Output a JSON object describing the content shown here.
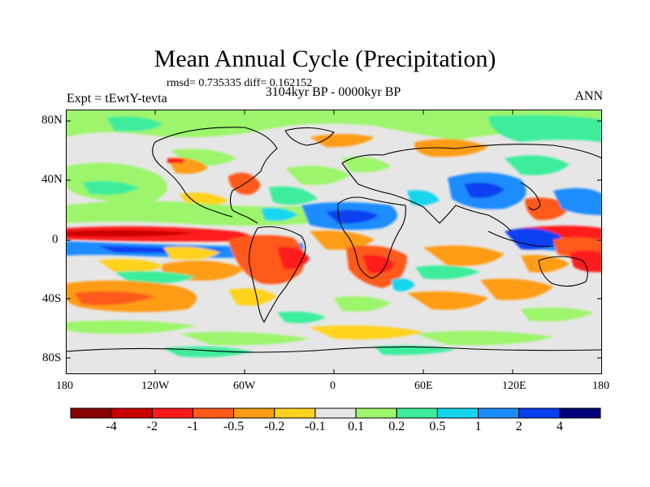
{
  "title": "Mean Annual Cycle (Precipitation)",
  "stats": "rmsd= 0.735335 diff= 0.162152",
  "period": "3104kyr BP - 0000kyr BP",
  "experiment": "Expt = tEwtY-tevta",
  "season": "ANN",
  "lat_labels": [
    "80N",
    "40N",
    "0",
    "40S",
    "80S"
  ],
  "lon_labels": [
    "180",
    "120W",
    "60W",
    "0",
    "60E",
    "120E",
    "180"
  ],
  "colorbar": {
    "labels": [
      "-4",
      "-2",
      "-1",
      "-0.5",
      "-0.2",
      "-0.1",
      "0.1",
      "0.2",
      "0.5",
      "1",
      "2",
      "4"
    ],
    "colors": [
      "#8b0000",
      "#cc0000",
      "#ff1a1a",
      "#ff5a1a",
      "#ff9c14",
      "#ffd21f",
      "#e6e6e6",
      "#9cf56a",
      "#3ded9c",
      "#14d6ee",
      "#1a8cff",
      "#0a3ff0",
      "#00007a"
    ]
  }
}
